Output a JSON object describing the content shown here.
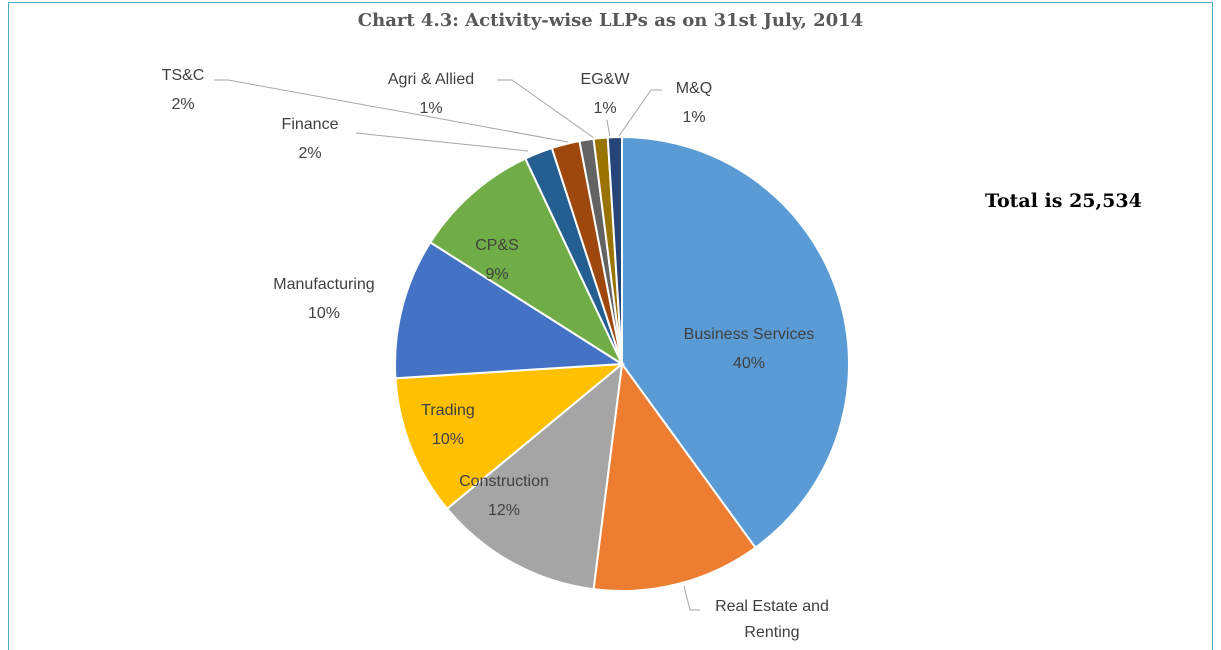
{
  "chart_data": {
    "type": "pie",
    "title": "Chart 4.3: Activity-wise  LLPs as on 31st July, 2014",
    "annotation": "Total is 25,534",
    "categories": [
      "Business Services",
      "Real Estate and Renting",
      "Construction",
      "Trading",
      "Manufacturing",
      "CP&S",
      "Finance",
      "TS&C",
      "Agri & Allied",
      "EG&W",
      "M&Q"
    ],
    "values": [
      40,
      12,
      12,
      10,
      10,
      9,
      2,
      2,
      1,
      1,
      1
    ],
    "value_labels": [
      "40%",
      null,
      "12%",
      "10%",
      "10%",
      "9%",
      "2%",
      "2%",
      "1%",
      "1%",
      "1%"
    ],
    "colors": [
      "#5b9bd5",
      "#ed7d31",
      "#a5a5a5",
      "#ffc000",
      "#4472c4",
      "#70ad47",
      "#255e91",
      "#9e480e",
      "#636363",
      "#997300",
      "#264478"
    ]
  }
}
